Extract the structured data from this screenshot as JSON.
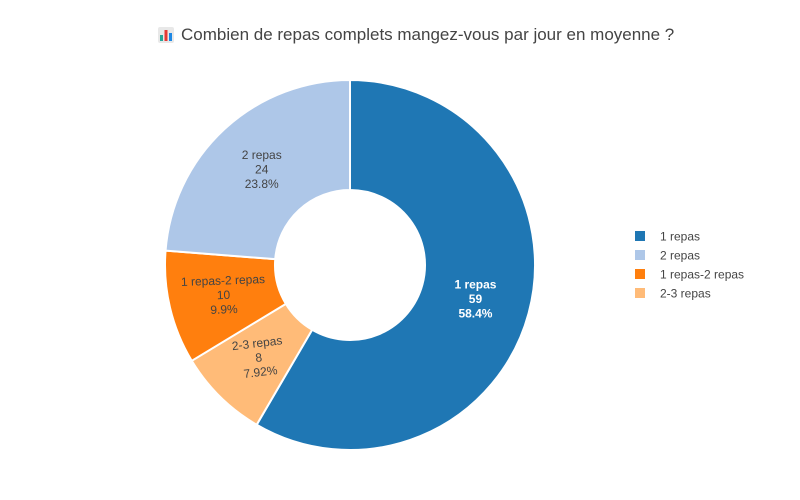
{
  "chart_data": {
    "type": "pie",
    "hole": true,
    "title": "Combien de repas complets mangez-vous par jour en moyenne ?",
    "title_icon": "bar-chart-icon",
    "direction": "clockwise",
    "legend_position": "right",
    "slices": [
      {
        "label": "1 repas",
        "value": 59,
        "percent": "58.4%",
        "color": "#1f77b4",
        "text_color": "#ffffff",
        "bold": true
      },
      {
        "label": "2-3 repas",
        "value": 8,
        "percent": "7.92%",
        "color": "#ffbb78",
        "text_color": "#444444",
        "bold": false
      },
      {
        "label": "1 repas-2 repas",
        "value": 10,
        "percent": "9.9%",
        "color": "#ff7f0e",
        "text_color": "#444444",
        "bold": false
      },
      {
        "label": "2 repas",
        "value": 24,
        "percent": "23.8%",
        "color": "#aec7e8",
        "text_color": "#444444",
        "bold": false
      }
    ],
    "legend": [
      {
        "label": "1 repas",
        "color": "#1f77b4"
      },
      {
        "label": "2 repas",
        "color": "#aec7e8"
      },
      {
        "label": "1 repas-2 repas",
        "color": "#ff7f0e"
      },
      {
        "label": "2-3 repas",
        "color": "#ffbb78"
      }
    ]
  }
}
